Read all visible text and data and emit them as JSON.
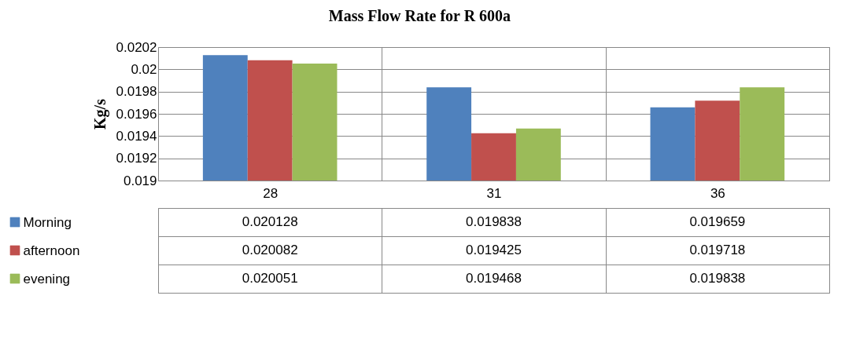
{
  "chart_data": {
    "type": "bar",
    "title": "Mass Flow Rate for R 600a",
    "ylabel": "Kg/s",
    "categories": [
      "28",
      "31",
      "36"
    ],
    "series": [
      {
        "name": "Morning",
        "color": "#4f81bd",
        "values": [
          0.020128,
          0.019838,
          0.019659
        ]
      },
      {
        "name": "afternoon",
        "color": "#c0504d",
        "values": [
          0.020082,
          0.019425,
          0.019718
        ]
      },
      {
        "name": "evening",
        "color": "#9bbb59",
        "values": [
          0.020051,
          0.019468,
          0.019838
        ]
      }
    ],
    "ylim": [
      0.019,
      0.0202
    ],
    "yticks": [
      0.019,
      0.0192,
      0.0194,
      0.0196,
      0.0198,
      0.02,
      0.0202
    ],
    "grid": "y",
    "legend": "bottom",
    "data_labels": true
  }
}
